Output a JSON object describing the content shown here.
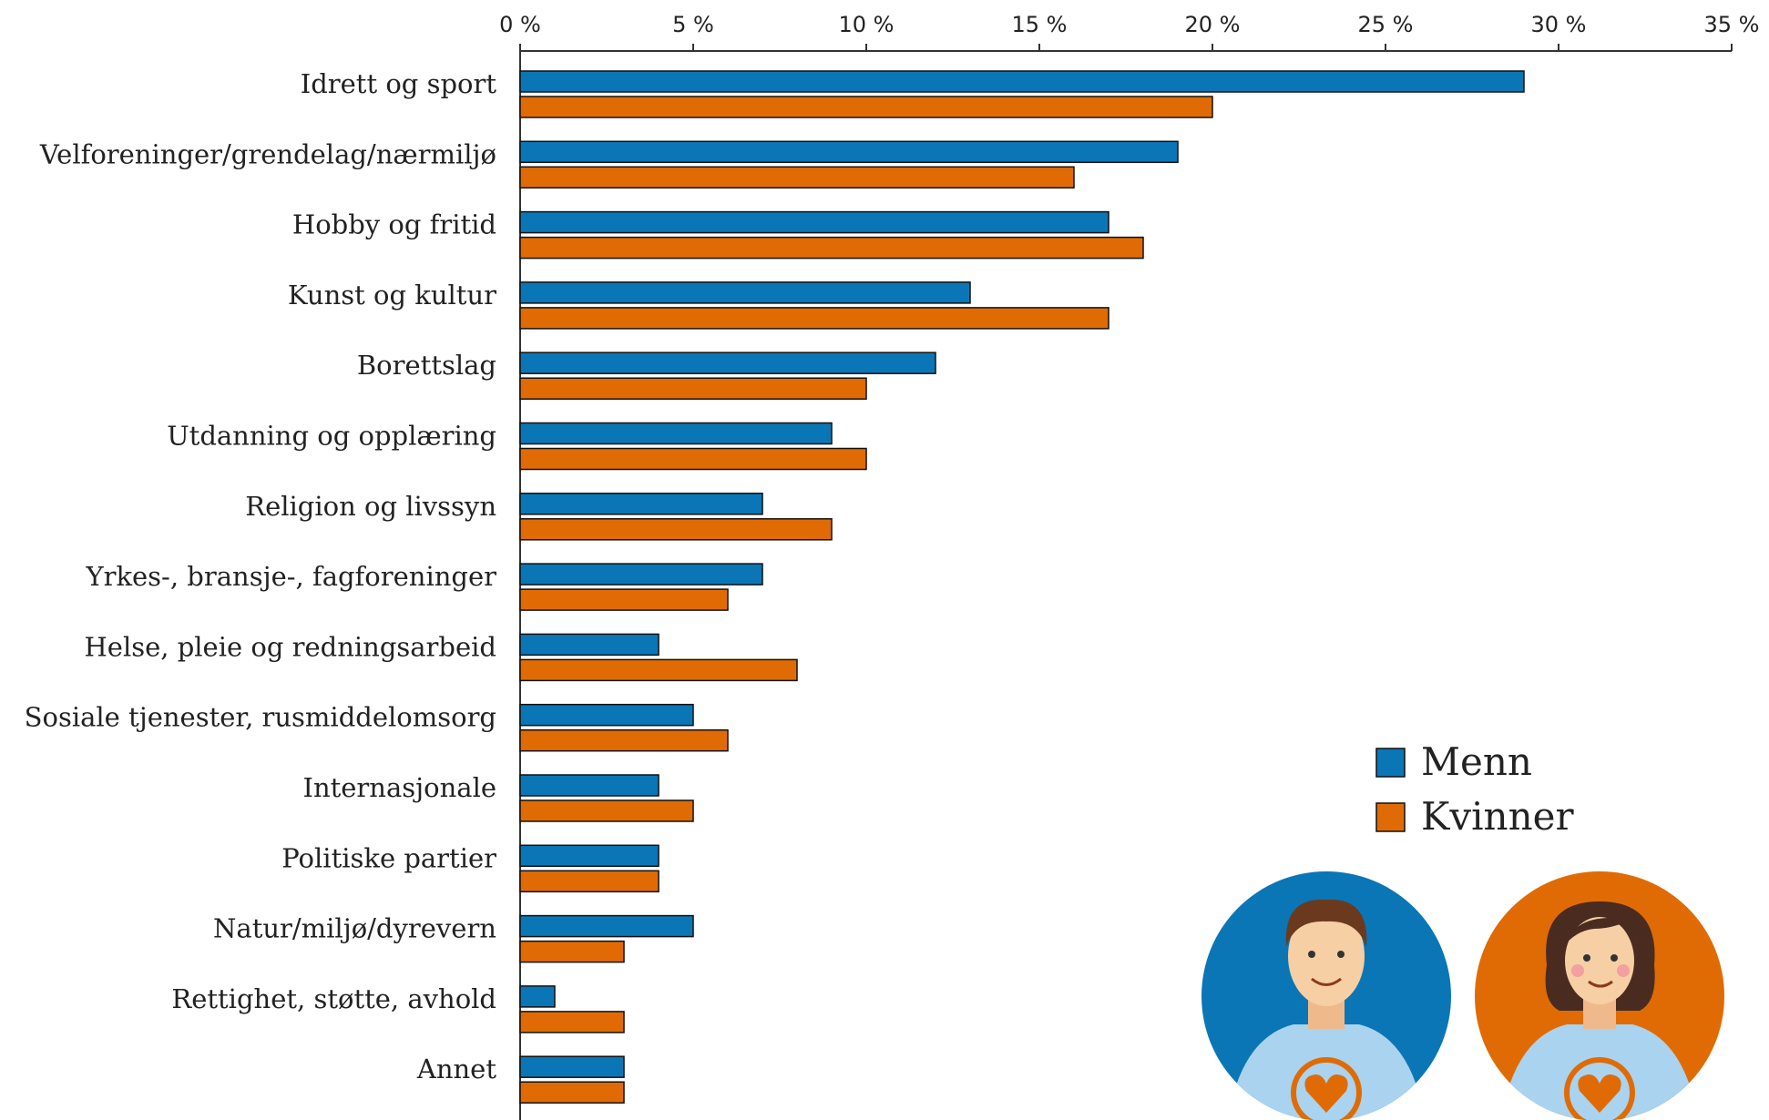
{
  "chart_data": {
    "type": "barh",
    "categories": [
      "Idrett og sport",
      "Velforeninger/grendelag/nærmiljø",
      "Hobby og fritid",
      "Kunst og kultur",
      "Borettslag",
      "Utdanning og opplæring",
      "Religion og livssyn",
      "Yrkes-, bransje-, fagforeninger",
      "Helse, pleie og redningsarbeid",
      "Sosiale tjenester, rusmiddelomsorg",
      "Internasjonale",
      "Politiske partier",
      "Natur/miljø/dyrevern",
      "Rettighet, støtte, avhold",
      "Annet"
    ],
    "series": [
      {
        "name": "Menn",
        "color": "#0a76b6",
        "values": [
          29,
          19,
          17,
          13,
          12,
          9,
          7,
          7,
          4,
          5,
          4,
          4,
          5,
          1,
          3
        ]
      },
      {
        "name": "Kvinner",
        "color": "#e06b05",
        "values": [
          20,
          16,
          18,
          17,
          10,
          10,
          9,
          6,
          8,
          6,
          5,
          4,
          3,
          3,
          3
        ]
      }
    ],
    "xlim": [
      0,
      35
    ],
    "xticks": [
      {
        "value": 0,
        "label": "0 %"
      },
      {
        "value": 5,
        "label": "5 %"
      },
      {
        "value": 10,
        "label": "10 %"
      },
      {
        "value": 15,
        "label": "15 %"
      },
      {
        "value": 20,
        "label": "20 %"
      },
      {
        "value": 25,
        "label": "25 %"
      },
      {
        "value": 30,
        "label": "30 %"
      },
      {
        "value": 35,
        "label": "35 %"
      }
    ]
  }
}
